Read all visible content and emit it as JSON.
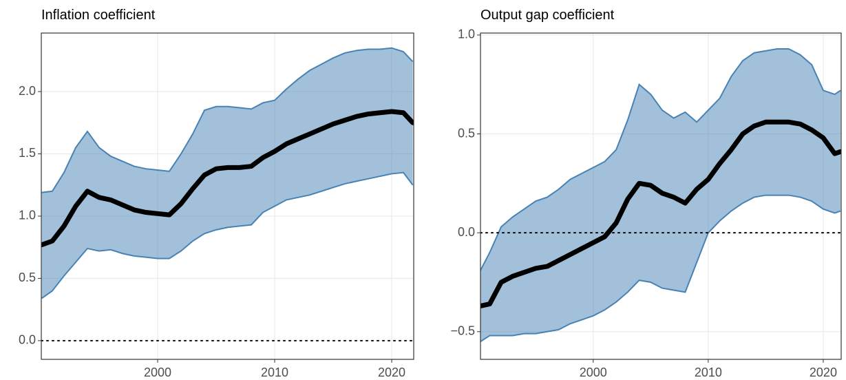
{
  "chart_data": [
    {
      "type": "line",
      "title": "Inflation coefficient",
      "x": [
        1990.1,
        1991,
        1992,
        1993,
        1994,
        1995,
        1996,
        1997,
        1998,
        1999,
        2000,
        2001,
        2002,
        2003,
        2004,
        2005,
        2006,
        2007,
        2008,
        2009,
        2010,
        2011,
        2012,
        2013,
        2014,
        2015,
        2016,
        2017,
        2018,
        2019,
        2020,
        2021,
        2021.8
      ],
      "values": [
        0.77,
        0.8,
        0.92,
        1.08,
        1.2,
        1.15,
        1.13,
        1.09,
        1.05,
        1.03,
        1.02,
        1.01,
        1.1,
        1.22,
        1.33,
        1.38,
        1.39,
        1.39,
        1.4,
        1.47,
        1.52,
        1.58,
        1.62,
        1.66,
        1.7,
        1.74,
        1.77,
        1.8,
        1.82,
        1.83,
        1.84,
        1.83,
        1.75
      ],
      "upper": [
        1.19,
        1.2,
        1.35,
        1.55,
        1.68,
        1.55,
        1.48,
        1.44,
        1.4,
        1.38,
        1.37,
        1.36,
        1.5,
        1.66,
        1.85,
        1.88,
        1.88,
        1.87,
        1.86,
        1.91,
        1.93,
        2.02,
        2.1,
        2.17,
        2.22,
        2.27,
        2.31,
        2.33,
        2.34,
        2.34,
        2.35,
        2.32,
        2.24
      ],
      "lower": [
        0.34,
        0.4,
        0.52,
        0.63,
        0.74,
        0.72,
        0.73,
        0.7,
        0.68,
        0.67,
        0.66,
        0.66,
        0.72,
        0.8,
        0.86,
        0.89,
        0.91,
        0.92,
        0.93,
        1.03,
        1.08,
        1.13,
        1.15,
        1.17,
        1.2,
        1.23,
        1.26,
        1.28,
        1.3,
        1.32,
        1.34,
        1.35,
        1.25
      ],
      "color": "#000000",
      "band_color": "#4682b4",
      "xlim": [
        1990.06,
        2021.88
      ],
      "xticks": [
        2000,
        2010,
        2020
      ],
      "ylim": [
        -0.15,
        2.47
      ],
      "yticks": [
        {
          "value": 0,
          "label": "0.0"
        },
        0.5,
        {
          "value": 1,
          "label": "1.0"
        },
        1.5,
        {
          "value": 2,
          "label": "2.0"
        }
      ],
      "reference_line": 0,
      "grid": true
    },
    {
      "type": "line",
      "title": "Output gap coefficient",
      "x": [
        1990.2,
        1991,
        1992,
        1993,
        1994,
        1995,
        1996,
        1997,
        1998,
        1999,
        2000,
        2001,
        2002,
        2003,
        2004,
        2005,
        2006,
        2007,
        2008,
        2009,
        2010,
        2011,
        2012,
        2013,
        2014,
        2015,
        2016,
        2017,
        2018,
        2019,
        2020,
        2021,
        2021.5
      ],
      "values": [
        -0.37,
        -0.36,
        -0.25,
        -0.22,
        -0.2,
        -0.18,
        -0.17,
        -0.14,
        -0.11,
        -0.08,
        -0.05,
        -0.02,
        0.05,
        0.17,
        0.25,
        0.24,
        0.2,
        0.18,
        0.15,
        0.22,
        0.27,
        0.35,
        0.42,
        0.5,
        0.54,
        0.56,
        0.56,
        0.56,
        0.55,
        0.52,
        0.48,
        0.4,
        0.41
      ],
      "upper": [
        -0.19,
        -0.1,
        0.03,
        0.08,
        0.12,
        0.16,
        0.18,
        0.22,
        0.27,
        0.3,
        0.33,
        0.36,
        0.42,
        0.57,
        0.75,
        0.7,
        0.62,
        0.58,
        0.61,
        0.56,
        0.62,
        0.68,
        0.79,
        0.87,
        0.91,
        0.92,
        0.93,
        0.93,
        0.9,
        0.85,
        0.72,
        0.7,
        0.72
      ],
      "lower": [
        -0.55,
        -0.52,
        -0.52,
        -0.52,
        -0.51,
        -0.51,
        -0.5,
        -0.49,
        -0.46,
        -0.44,
        -0.42,
        -0.39,
        -0.35,
        -0.3,
        -0.24,
        -0.25,
        -0.28,
        -0.29,
        -0.3,
        -0.15,
        0.0,
        0.06,
        0.11,
        0.15,
        0.18,
        0.19,
        0.19,
        0.19,
        0.18,
        0.16,
        0.12,
        0.1,
        0.11
      ],
      "color": "#000000",
      "band_color": "#4682b4",
      "xlim": [
        1990.2,
        2021.56
      ],
      "xticks": [
        2000,
        2010,
        2020
      ],
      "ylim": [
        -0.64,
        1.01
      ],
      "yticks": [
        {
          "value": -0.5,
          "label": "−0.5"
        },
        {
          "value": 0,
          "label": "0.0"
        },
        0.5,
        {
          "value": 1,
          "label": "1.0"
        }
      ],
      "reference_line": 0,
      "grid": true
    }
  ]
}
